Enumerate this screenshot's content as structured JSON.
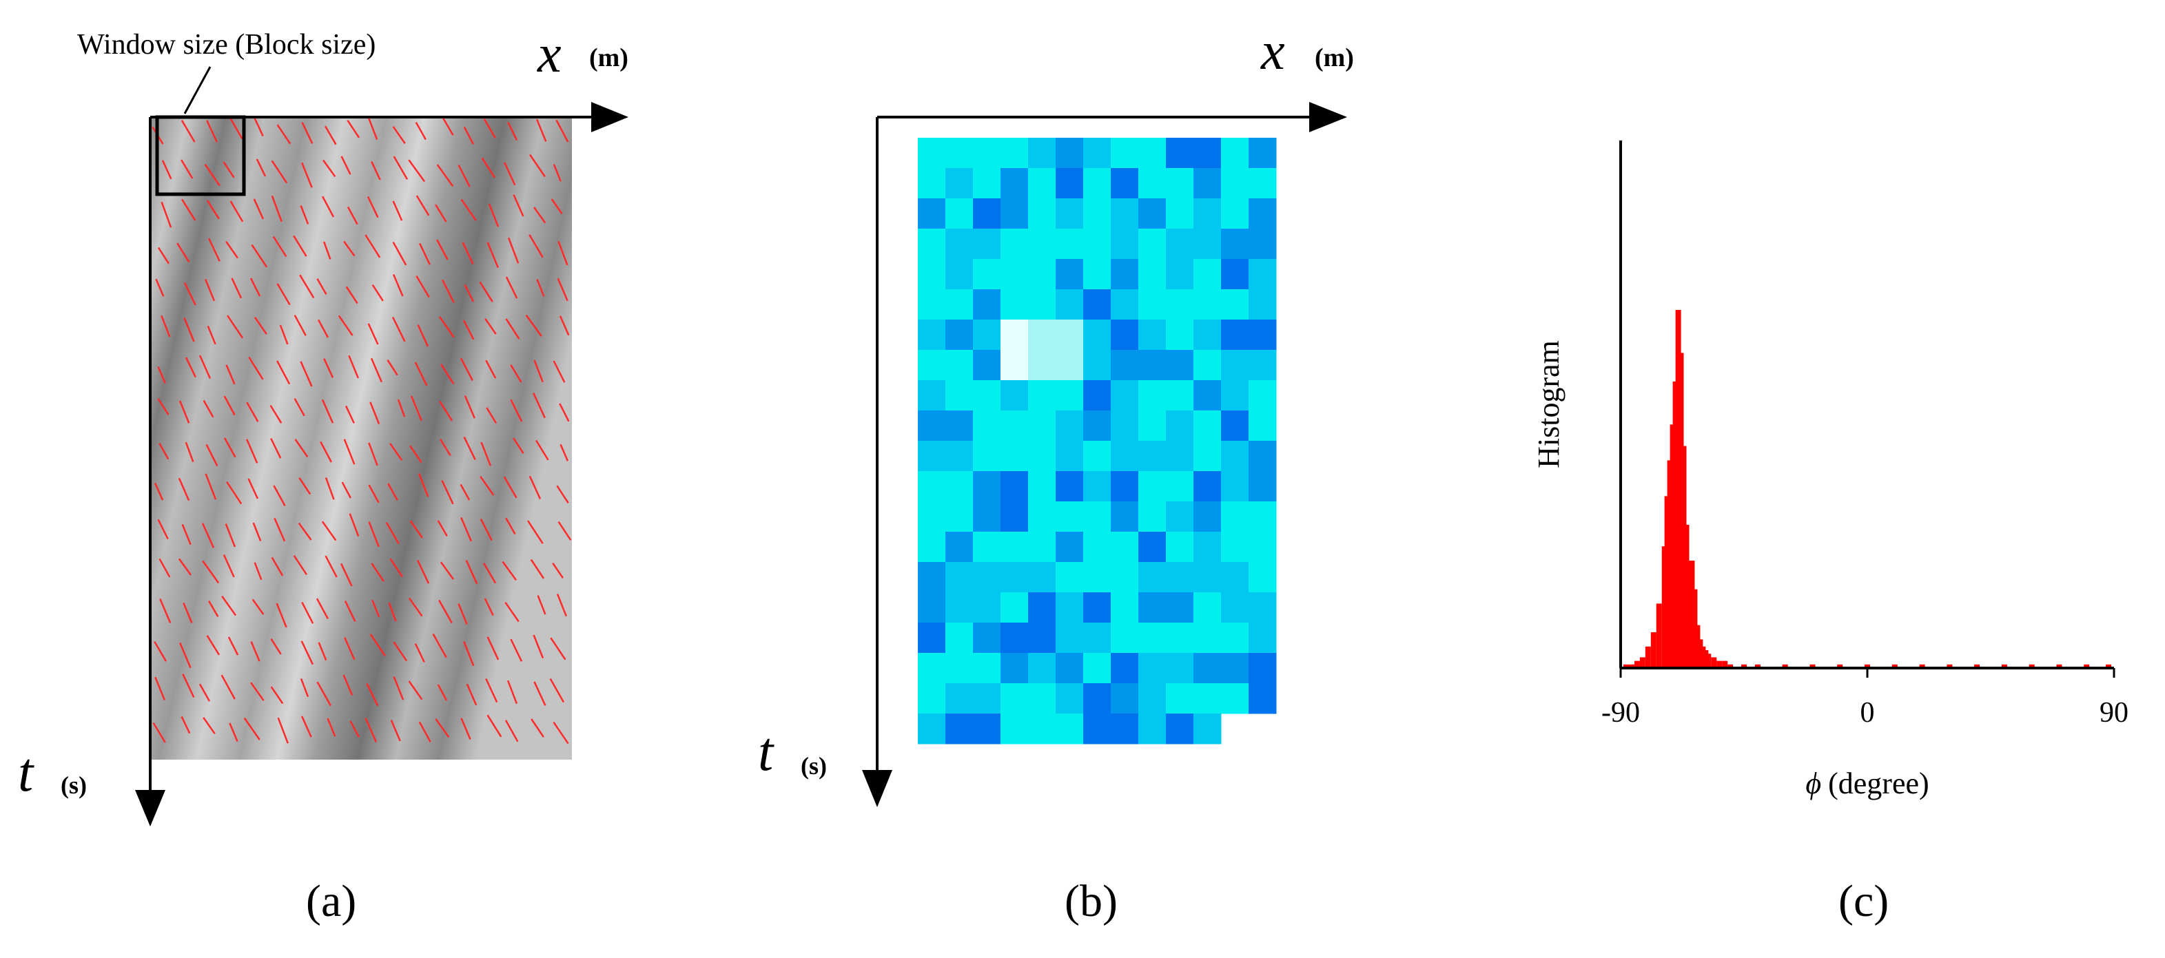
{
  "panel_a": {
    "window_label": "Window size (Block size)",
    "x_var": "x",
    "x_unit": "(m)",
    "t_var": "t",
    "t_unit": "(s)",
    "caption": "(a)",
    "line_color": "#ff2a2a"
  },
  "panel_b": {
    "x_var": "x",
    "x_unit": "(m)",
    "t_var": "t",
    "t_unit": "(s)",
    "caption": "(b)",
    "palette": [
      "#e6ffff",
      "#a6f5f5",
      "#00f0f0",
      "#00c8f0",
      "#0096ee",
      "#0073ee"
    ]
  },
  "panel_c": {
    "ylabel": "Histogram",
    "xlabel_symbol": "ϕ",
    "xlabel_unit": "(degree)",
    "caption": "(c)",
    "bar_color": "#ff0000"
  },
  "chart_data": {
    "type": "bar",
    "xlabel": "ϕ (degree)",
    "ylabel": "Histogram",
    "xlim": [
      -90,
      90
    ],
    "xticks": [
      "-90",
      "0",
      "90"
    ],
    "grid": false,
    "series": [
      {
        "x": [
          -88,
          -86,
          -84,
          -82,
          -80,
          -78,
          -76,
          -74,
          -73,
          -72,
          -71,
          -70,
          -69,
          -68,
          -67,
          -66,
          -65,
          -64,
          -63,
          -62,
          -61,
          -60,
          -59,
          -58,
          -56,
          -54,
          -52,
          -50,
          -45,
          -40,
          -30,
          -20,
          -10,
          0,
          10,
          20,
          30,
          40,
          50,
          60,
          70,
          80,
          88
        ],
        "values": [
          1,
          1,
          2,
          3,
          6,
          10,
          18,
          34,
          48,
          58,
          68,
          80,
          100,
          88,
          62,
          40,
          26,
          30,
          22,
          12,
          8,
          6,
          5,
          4,
          3,
          2,
          2,
          1,
          1,
          1,
          1,
          1,
          1,
          1,
          1,
          1,
          1,
          1,
          1,
          1,
          1,
          1,
          1
        ]
      }
    ]
  }
}
